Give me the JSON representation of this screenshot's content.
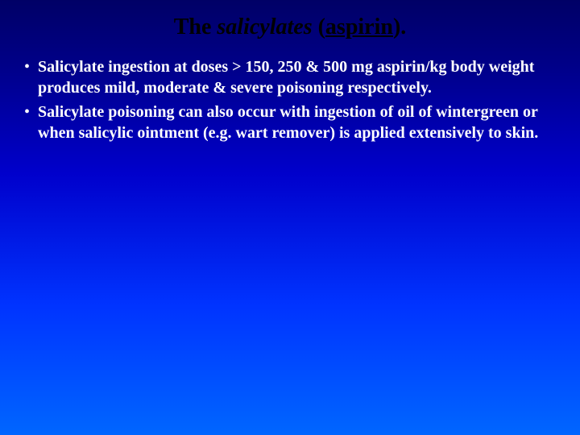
{
  "slide": {
    "background_gradient_top": "#000066",
    "background_gradient_bottom": "#0066ff",
    "title": {
      "part_the": "The ",
      "part_salicylates": "salicylates",
      "part_space": " ",
      "part_open": "(",
      "part_aspirin": "aspirin",
      "part_close": ").",
      "font_size_pt": 28,
      "color": "#000000"
    },
    "bullets": [
      {
        "marker": "•",
        "text": "Salicylate ingestion at doses > 150, 250 & 500 mg aspirin/kg body weight produces mild, moderate & severe poisoning respectively."
      },
      {
        "marker": "•",
        "text": "Salicylate poisoning can also occur with ingestion of oil of wintergreen or when salicylic ointment (e.g. wart remover) is applied extensively to skin."
      }
    ],
    "bullet_style": {
      "text_color": "#ffffff",
      "font_size_pt": 20,
      "font_weight": "bold",
      "line_height_pt": 26
    }
  }
}
